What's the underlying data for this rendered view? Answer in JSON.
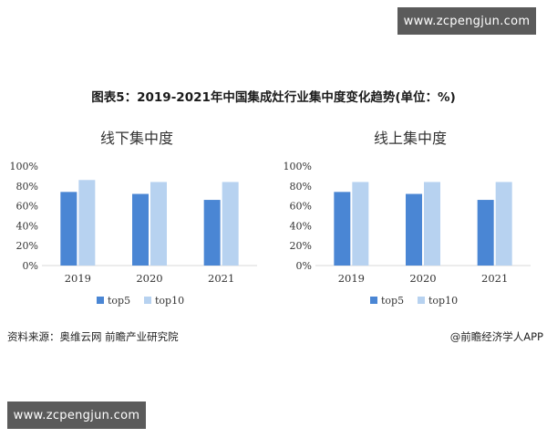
{
  "watermark_text": "www.zcpengjun.com",
  "figure_title": "图表5：2019-2021年中国集成灶行业集中度变化趋势(单位：%)",
  "source_text": "资料来源：奥维云网 前瞻产业研究院",
  "credit_text": "@前瞻经济学人APP",
  "colors": {
    "top5": "#4a86d4",
    "top10": "#b7d2f0",
    "axis_text": "#333333",
    "gridline": "#d9d9d9"
  },
  "chart_data": [
    {
      "type": "bar",
      "title": "线下集中度",
      "categories": [
        "2019",
        "2020",
        "2021"
      ],
      "series": [
        {
          "name": "top5",
          "values": [
            74,
            72,
            66
          ]
        },
        {
          "name": "top10",
          "values": [
            86,
            84,
            84
          ]
        }
      ],
      "yticks": [
        "0%",
        "20%",
        "40%",
        "60%",
        "80%",
        "100%"
      ],
      "ylim": [
        0,
        100
      ],
      "legend_position": "bottom"
    },
    {
      "type": "bar",
      "title": "线上集中度",
      "categories": [
        "2019",
        "2020",
        "2021"
      ],
      "series": [
        {
          "name": "top5",
          "values": [
            74,
            72,
            66
          ]
        },
        {
          "name": "top10",
          "values": [
            84,
            84,
            84
          ]
        }
      ],
      "yticks": [
        "0%",
        "20%",
        "40%",
        "60%",
        "80%",
        "100%"
      ],
      "ylim": [
        0,
        100
      ],
      "legend_position": "bottom"
    }
  ]
}
